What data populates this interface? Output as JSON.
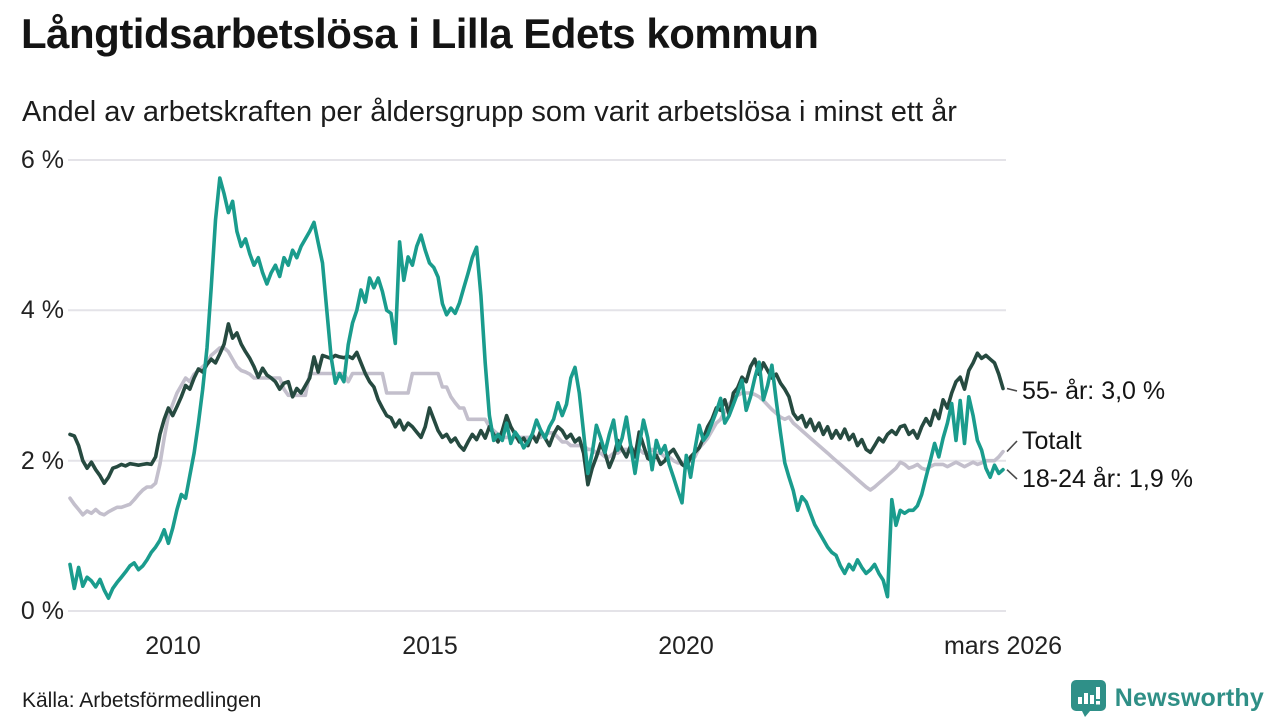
{
  "header": {
    "title": "Långtidsarbetslösa i Lilla Edets kommun",
    "subtitle": "Andel av arbetskraften per åldersgrupp som varit arbetslösa i minst ett år"
  },
  "footer": {
    "source": "Källa: Arbetsförmedlingen",
    "brand": "Newsworthy"
  },
  "chart_data": {
    "type": "line",
    "title": "Långtidsarbetslösa i Lilla Edets kommun",
    "subtitle": "Andel av arbetskraften per åldersgrupp som varit arbetslösa i minst ett år",
    "unit": "%",
    "x_start": "2008-01",
    "x_end": "2026-03",
    "ylim": [
      0,
      6
    ],
    "grid": true,
    "legend_position": "right-end-labels",
    "colors": {
      "age_55_plus": "#264a40",
      "total": "#c3bfcc",
      "age_18_24": "#1a9c8d",
      "gridline": "#e4e3e8",
      "leader": "#4a4a4a",
      "brand_teal": "#2f8f86"
    },
    "y_ticks": [
      {
        "label": "6 %",
        "value": 6
      },
      {
        "label": "4 %",
        "value": 4
      },
      {
        "label": "2 %",
        "value": 2
      },
      {
        "label": "0 %",
        "value": 0
      }
    ],
    "x_ticks": [
      {
        "label": "2010",
        "month_index": 24
      },
      {
        "label": "2015",
        "month_index": 84
      },
      {
        "label": "2020",
        "month_index": 144
      },
      {
        "label": "mars 2026",
        "month_index": 218
      }
    ],
    "series": [
      {
        "name": "Totalt",
        "label": "Totalt",
        "color": "#c3bfcc",
        "values": [
          1.5,
          1.42,
          1.35,
          1.28,
          1.33,
          1.3,
          1.35,
          1.3,
          1.28,
          1.32,
          1.35,
          1.38,
          1.38,
          1.4,
          1.42,
          1.48,
          1.55,
          1.61,
          1.65,
          1.65,
          1.7,
          1.95,
          2.3,
          2.6,
          2.75,
          2.9,
          3.0,
          3.1,
          3.05,
          3.15,
          3.2,
          3.25,
          3.3,
          3.4,
          3.45,
          3.5,
          3.5,
          3.45,
          3.35,
          3.25,
          3.2,
          3.18,
          3.15,
          3.1,
          3.1,
          3.1,
          3.1,
          3.1,
          3.1,
          3.1,
          2.95,
          2.87,
          2.87,
          2.87,
          2.87,
          2.87,
          3.16,
          3.16,
          3.16,
          3.16,
          3.16,
          3.16,
          3.16,
          3.16,
          3.16,
          3.05,
          3.16,
          3.16,
          3.16,
          3.16,
          3.16,
          3.16,
          3.16,
          3.16,
          2.9,
          2.9,
          2.9,
          2.9,
          2.9,
          2.9,
          3.16,
          3.16,
          3.16,
          3.16,
          3.16,
          3.16,
          3.16,
          2.98,
          2.98,
          2.85,
          2.77,
          2.7,
          2.7,
          2.55,
          2.55,
          2.55,
          2.55,
          2.55,
          2.45,
          2.4,
          2.35,
          2.31,
          2.31,
          2.31,
          2.31,
          2.31,
          2.31,
          2.31,
          2.31,
          2.31,
          2.31,
          2.35,
          2.37,
          2.37,
          2.31,
          2.25,
          2.25,
          2.2,
          2.2,
          2.2,
          2.2,
          2.15,
          2.15,
          2.1,
          2.1,
          2.05,
          2.05,
          2.1,
          2.1,
          2.15,
          2.15,
          2.15,
          2.15,
          2.15,
          2.1,
          2.1,
          2.15,
          2.1,
          2.1,
          2.05,
          2.05,
          2.0,
          1.97,
          1.97,
          1.97,
          2.0,
          2.05,
          2.17,
          2.23,
          2.3,
          2.4,
          2.5,
          2.55,
          2.65,
          2.75,
          2.83,
          2.87,
          2.9,
          2.9,
          2.9,
          2.88,
          2.85,
          2.8,
          2.74,
          2.68,
          2.63,
          2.58,
          2.55,
          2.58,
          2.5,
          2.45,
          2.4,
          2.35,
          2.3,
          2.25,
          2.2,
          2.15,
          2.1,
          2.05,
          2.0,
          1.95,
          1.9,
          1.85,
          1.8,
          1.75,
          1.7,
          1.65,
          1.61,
          1.65,
          1.7,
          1.75,
          1.8,
          1.85,
          1.9,
          1.98,
          1.95,
          1.9,
          1.92,
          1.95,
          1.9,
          1.88,
          1.92,
          1.95,
          1.95,
          1.95,
          1.92,
          1.95,
          1.98,
          1.95,
          1.92,
          1.95,
          1.98,
          1.95,
          1.97,
          2.0,
          2.0,
          2.0,
          2.05,
          2.12
        ]
      },
      {
        "name": "55- år",
        "label": "55- år: 3,0 %",
        "color": "#264a40",
        "values": [
          2.35,
          2.33,
          2.2,
          2.0,
          1.9,
          1.98,
          1.88,
          1.8,
          1.7,
          1.78,
          1.9,
          1.92,
          1.95,
          1.93,
          1.96,
          1.95,
          1.94,
          1.95,
          1.96,
          1.95,
          2.05,
          2.35,
          2.55,
          2.7,
          2.6,
          2.72,
          2.85,
          3.0,
          2.95,
          3.1,
          3.22,
          3.18,
          3.28,
          3.35,
          3.3,
          3.42,
          3.55,
          3.82,
          3.63,
          3.7,
          3.55,
          3.45,
          3.36,
          3.25,
          3.11,
          3.23,
          3.14,
          3.1,
          3.05,
          2.95,
          3.03,
          3.05,
          2.85,
          2.96,
          2.9,
          3.0,
          3.1,
          3.38,
          3.18,
          3.4,
          3.38,
          3.36,
          3.4,
          3.38,
          3.37,
          3.39,
          3.36,
          3.44,
          3.3,
          3.16,
          3.05,
          2.98,
          2.81,
          2.7,
          2.6,
          2.57,
          2.45,
          2.54,
          2.41,
          2.5,
          2.45,
          2.38,
          2.31,
          2.45,
          2.7,
          2.55,
          2.4,
          2.31,
          2.35,
          2.25,
          2.3,
          2.2,
          2.14,
          2.25,
          2.35,
          2.28,
          2.4,
          2.3,
          2.45,
          2.35,
          2.25,
          2.4,
          2.6,
          2.45,
          2.35,
          2.25,
          2.3,
          2.2,
          2.35,
          2.25,
          2.4,
          2.3,
          2.2,
          2.35,
          2.45,
          2.4,
          2.3,
          2.35,
          2.25,
          2.3,
          2.1,
          1.68,
          1.9,
          2.05,
          2.23,
          2.1,
          1.91,
          2.05,
          2.27,
          2.15,
          2.05,
          2.2,
          2.05,
          2.38,
          2.2,
          2.03,
          2.0,
          2.07,
          1.95,
          2.0,
          2.1,
          2.15,
          2.05,
          1.95,
          1.91,
          2.05,
          2.11,
          2.17,
          2.3,
          2.45,
          2.55,
          2.7,
          2.67,
          2.81,
          2.61,
          2.9,
          2.97,
          3.11,
          3.05,
          3.25,
          3.35,
          3.15,
          3.3,
          3.2,
          3.1,
          3.15,
          3.03,
          2.95,
          2.85,
          2.63,
          2.55,
          2.6,
          2.45,
          2.55,
          2.4,
          2.5,
          2.35,
          2.45,
          2.3,
          2.4,
          2.3,
          2.42,
          2.28,
          2.35,
          2.2,
          2.28,
          2.15,
          2.11,
          2.2,
          2.3,
          2.25,
          2.35,
          2.4,
          2.35,
          2.45,
          2.47,
          2.35,
          2.4,
          2.3,
          2.45,
          2.56,
          2.47,
          2.67,
          2.56,
          2.81,
          2.7,
          2.9,
          3.05,
          3.11,
          2.95,
          3.2,
          3.3,
          3.43,
          3.36,
          3.4,
          3.35,
          3.3,
          3.15,
          2.96
        ]
      },
      {
        "name": "18-24 år",
        "label": "18-24 år: 1,9 %",
        "color": "#1a9c8d",
        "values": [
          0.62,
          0.3,
          0.58,
          0.33,
          0.45,
          0.4,
          0.32,
          0.42,
          0.28,
          0.17,
          0.3,
          0.38,
          0.45,
          0.52,
          0.6,
          0.64,
          0.55,
          0.6,
          0.68,
          0.78,
          0.85,
          0.94,
          1.08,
          0.9,
          1.1,
          1.35,
          1.55,
          1.5,
          1.8,
          2.1,
          2.5,
          2.95,
          3.5,
          4.3,
          5.2,
          5.76,
          5.55,
          5.3,
          5.45,
          5.05,
          4.85,
          4.95,
          4.75,
          4.6,
          4.7,
          4.5,
          4.35,
          4.5,
          4.6,
          4.45,
          4.7,
          4.6,
          4.8,
          4.7,
          4.85,
          4.95,
          5.05,
          5.17,
          4.9,
          4.63,
          4.0,
          3.38,
          3.03,
          3.16,
          3.05,
          3.54,
          3.83,
          4.0,
          4.27,
          4.11,
          4.43,
          4.3,
          4.43,
          4.25,
          4.0,
          3.96,
          3.56,
          4.91,
          4.4,
          4.71,
          4.6,
          4.85,
          5.0,
          4.8,
          4.63,
          4.57,
          4.44,
          4.09,
          3.94,
          4.03,
          3.96,
          4.1,
          4.3,
          4.49,
          4.7,
          4.84,
          4.2,
          3.3,
          2.6,
          2.27,
          2.35,
          2.27,
          2.5,
          2.23,
          2.38,
          2.3,
          2.17,
          2.25,
          2.35,
          2.54,
          2.4,
          2.3,
          2.45,
          2.55,
          2.77,
          2.6,
          2.75,
          3.1,
          3.24,
          2.9,
          2.37,
          1.83,
          2.1,
          2.47,
          2.3,
          2.11,
          2.35,
          2.54,
          2.14,
          2.3,
          2.58,
          2.2,
          1.83,
          2.2,
          2.54,
          2.3,
          1.88,
          2.27,
          2.1,
          2.2,
          1.95,
          1.78,
          1.6,
          1.44,
          2.07,
          1.78,
          2.15,
          2.47,
          2.27,
          2.35,
          2.5,
          2.65,
          2.83,
          2.5,
          2.6,
          2.75,
          2.9,
          3.07,
          2.67,
          2.85,
          3.1,
          3.31,
          2.81,
          3.0,
          3.27,
          2.8,
          2.37,
          1.97,
          1.78,
          1.6,
          1.34,
          1.52,
          1.45,
          1.3,
          1.15,
          1.05,
          0.95,
          0.85,
          0.78,
          0.74,
          0.6,
          0.5,
          0.62,
          0.55,
          0.68,
          0.58,
          0.5,
          0.55,
          0.62,
          0.5,
          0.41,
          0.19,
          1.48,
          1.14,
          1.34,
          1.3,
          1.34,
          1.34,
          1.4,
          1.55,
          1.78,
          2.0,
          2.23,
          2.05,
          2.3,
          2.5,
          2.76,
          2.27,
          2.8,
          2.23,
          2.85,
          2.6,
          2.27,
          2.14,
          1.9,
          1.78,
          1.94,
          1.83,
          1.88
        ]
      }
    ]
  }
}
